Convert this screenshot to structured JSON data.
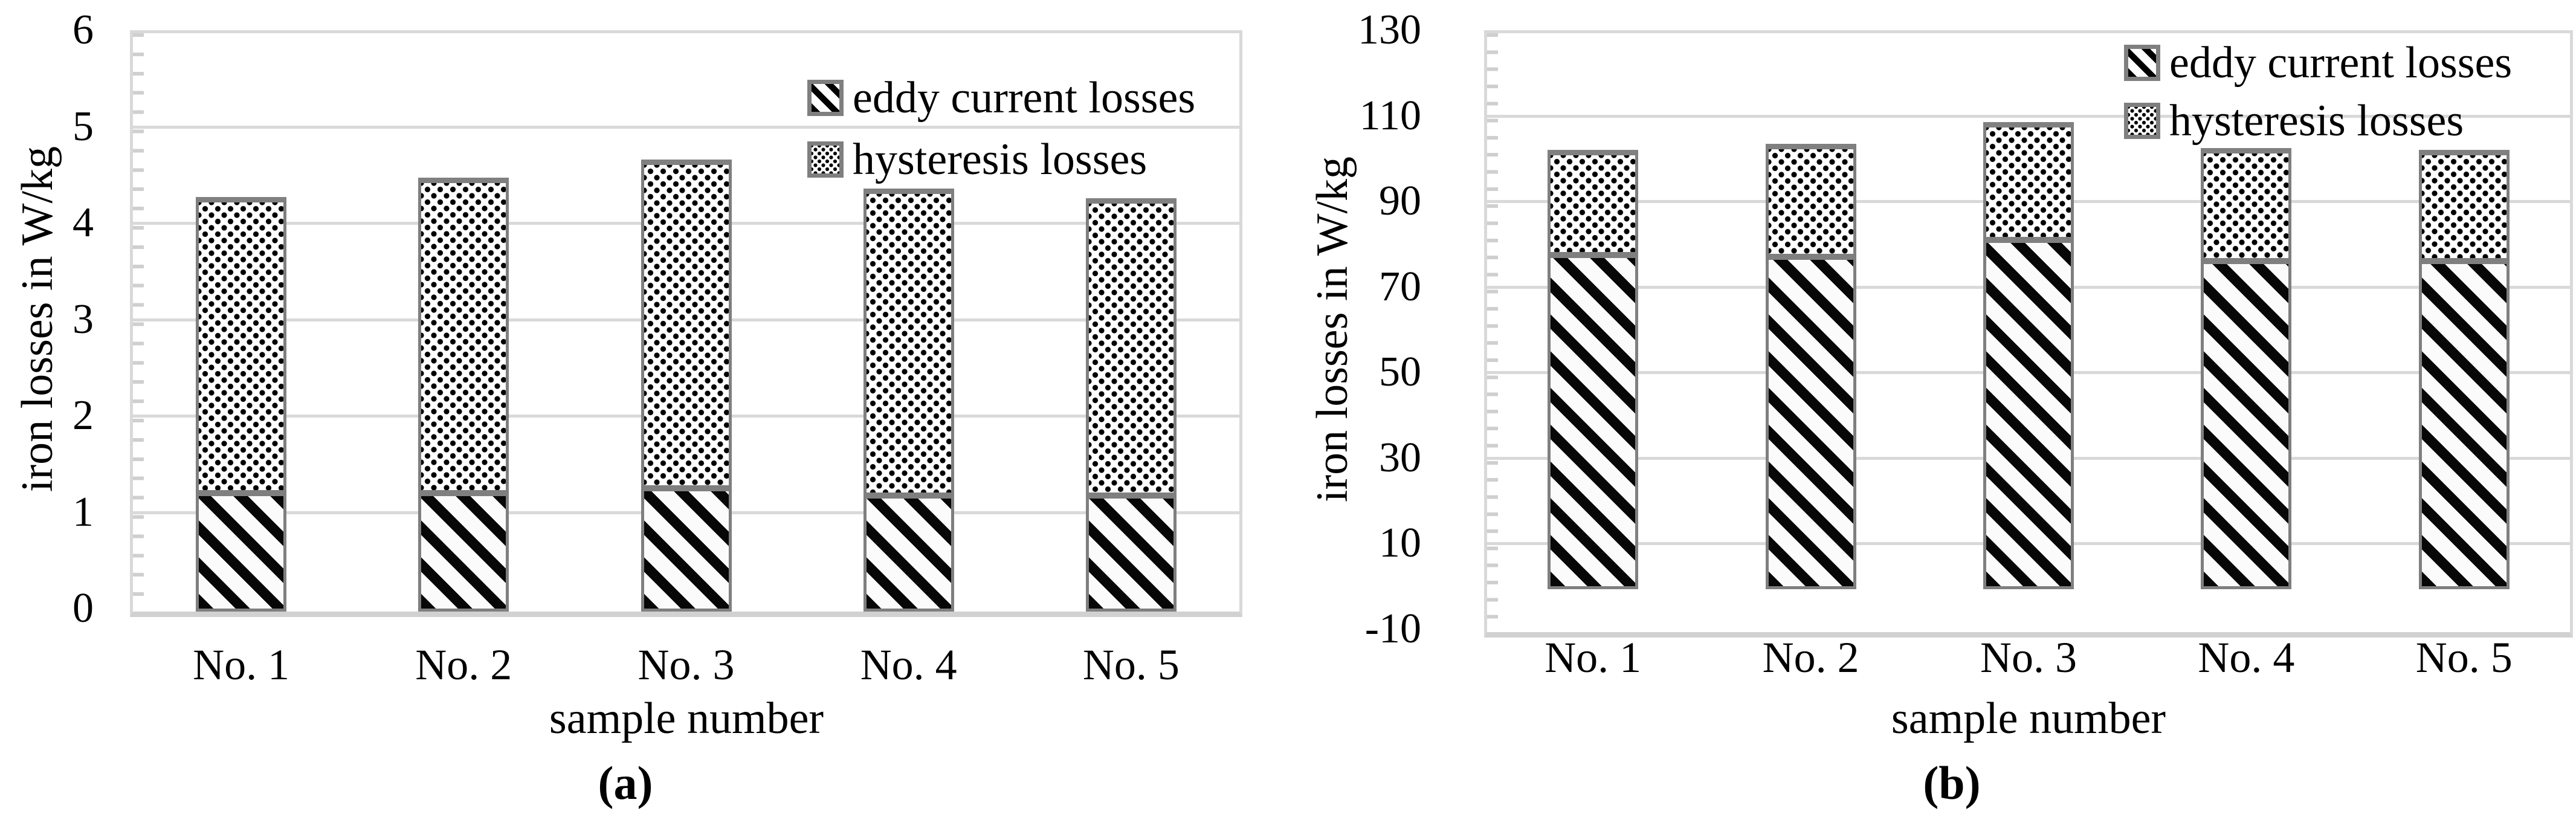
{
  "chart_data": [
    {
      "id": "a",
      "type": "bar",
      "stacked": true,
      "caption": "(a)",
      "categories": [
        "No. 1",
        "No. 2",
        "No. 3",
        "No. 4",
        "No. 5"
      ],
      "series": [
        {
          "name": "eddy current losses",
          "pattern": "diagonal-stripes",
          "values": [
            1.2,
            1.2,
            1.25,
            1.17,
            1.17
          ]
        },
        {
          "name": "hysteresis losses",
          "pattern": "dots",
          "values": [
            3.07,
            3.27,
            3.41,
            3.19,
            3.09
          ]
        }
      ],
      "stack_totals": [
        4.27,
        4.47,
        4.66,
        4.36,
        4.26
      ],
      "xlabel": "sample number",
      "ylabel": "iron losses in W/kg",
      "ylim": [
        0,
        6
      ],
      "yticks": [
        0,
        1,
        2,
        3,
        4,
        5,
        6
      ],
      "grid": true,
      "legend_position": "top-right-inside"
    },
    {
      "id": "b",
      "type": "bar",
      "stacked": true,
      "caption": "(b)",
      "categories": [
        "No. 1",
        "No. 2",
        "No. 3",
        "No. 4",
        "No. 5"
      ],
      "series": [
        {
          "name": "eddy current losses",
          "pattern": "diagonal-stripes",
          "values": [
            77.5,
            77,
            81,
            76,
            76
          ]
        },
        {
          "name": "hysteresis losses",
          "pattern": "dots",
          "values": [
            24.5,
            26.5,
            27.5,
            26.5,
            26
          ]
        }
      ],
      "stack_totals": [
        102,
        103.5,
        108.5,
        102.5,
        102
      ],
      "xlabel": "sample number",
      "ylabel": "iron losses in W/kg",
      "ylim": [
        -10,
        130
      ],
      "yticks": [
        -10,
        10,
        30,
        50,
        70,
        90,
        110,
        130
      ],
      "grid": true,
      "legend_position": "top-right-inside"
    }
  ],
  "colors": {
    "background": "#ffffff",
    "gridline": "#d9d9d9",
    "plot_border": "#d9d9d9",
    "bar_border": "#7f7f7f",
    "pattern_ink": "#000000",
    "text": "#000000"
  }
}
